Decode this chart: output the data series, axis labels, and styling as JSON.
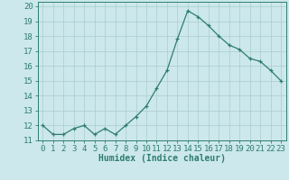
{
  "x": [
    0,
    1,
    2,
    3,
    4,
    5,
    6,
    7,
    8,
    9,
    10,
    11,
    12,
    13,
    14,
    15,
    16,
    17,
    18,
    19,
    20,
    21,
    22,
    23
  ],
  "y": [
    12.0,
    11.4,
    11.4,
    11.8,
    12.0,
    11.4,
    11.8,
    11.4,
    12.0,
    12.6,
    13.3,
    14.5,
    15.7,
    17.8,
    19.7,
    19.3,
    18.7,
    18.0,
    17.4,
    17.1,
    16.5,
    16.3,
    15.7,
    15.0
  ],
  "line_color": "#2e7d6e",
  "marker": "+",
  "bg_color": "#cce8ec",
  "grid_color": "#aacccc",
  "xlabel": "Humidex (Indice chaleur)",
  "xlim": [
    -0.5,
    23.5
  ],
  "ylim": [
    11.0,
    20.3
  ],
  "yticks": [
    11,
    12,
    13,
    14,
    15,
    16,
    17,
    18,
    19,
    20
  ],
  "xticks": [
    0,
    1,
    2,
    3,
    4,
    5,
    6,
    7,
    8,
    9,
    10,
    11,
    12,
    13,
    14,
    15,
    16,
    17,
    18,
    19,
    20,
    21,
    22,
    23
  ],
  "tick_color": "#2e7d6e",
  "label_color": "#2e7d6e",
  "font_size": 6.5
}
